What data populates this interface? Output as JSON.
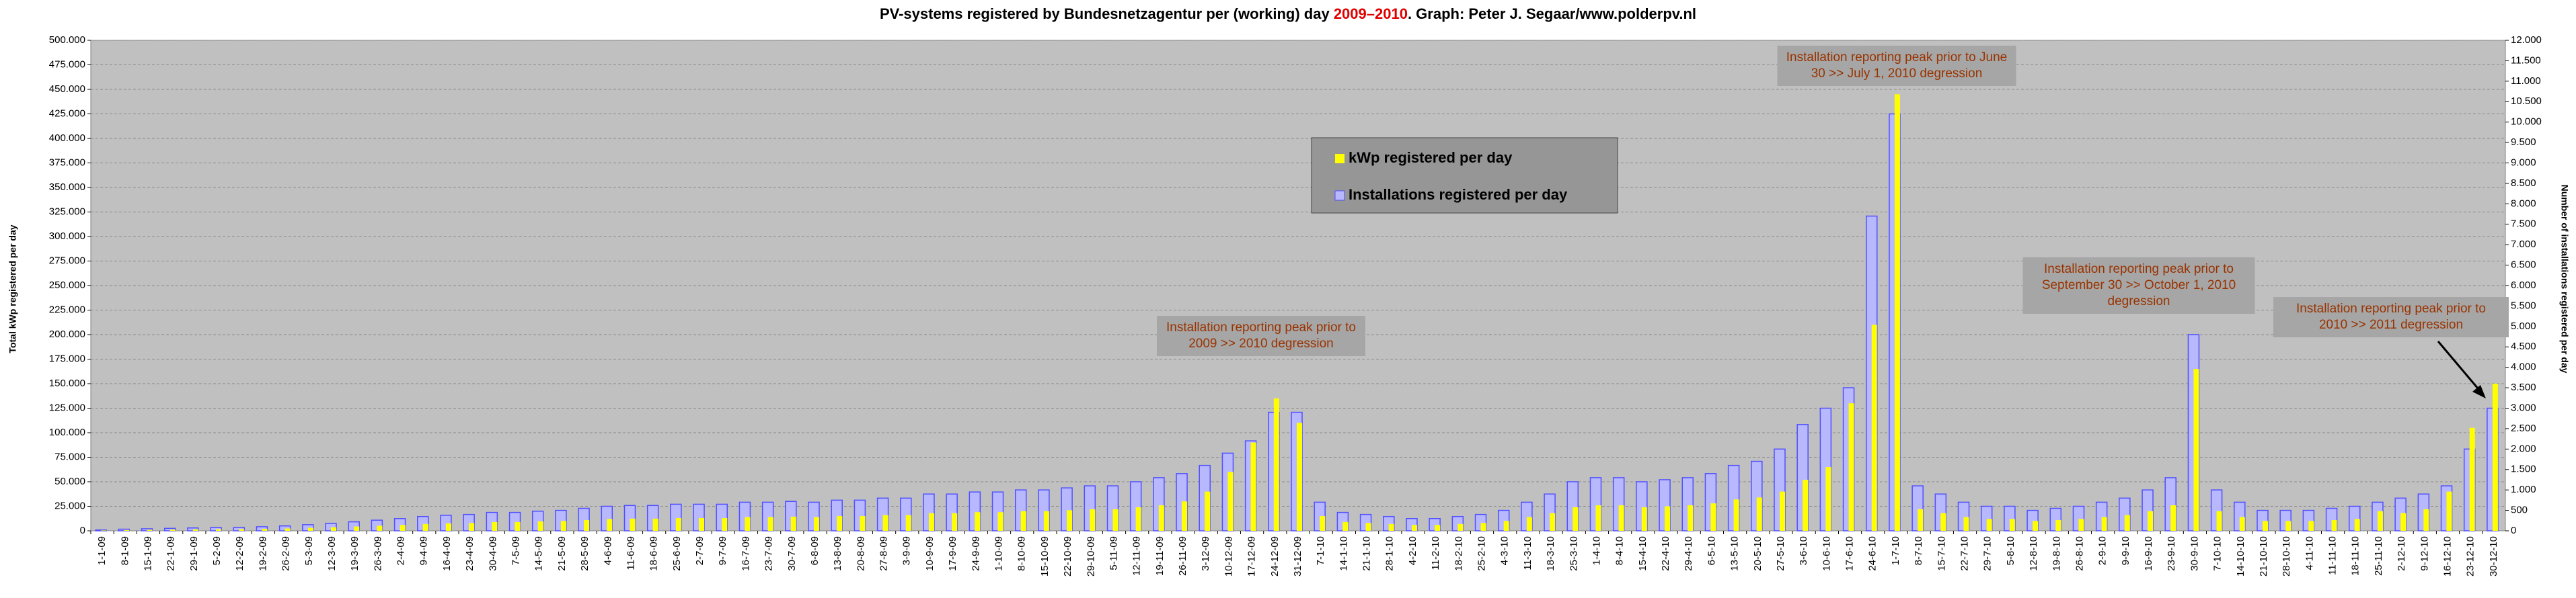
{
  "chart_data": {
    "type": "bar",
    "title_parts": [
      "PV-systems registered by Bundesnetzagentur per (working) day ",
      "2009–2010",
      ". Graph: Peter J. Segaar/www.polderpv.nl"
    ],
    "y_label": "Total kWp registered per day",
    "y2_label": "Number of installations registered per day",
    "categories": [
      "1-1-09",
      "8-1-09",
      "15-1-09",
      "22-1-09",
      "29-1-09",
      "5-2-09",
      "12-2-09",
      "19-2-09",
      "26-2-09",
      "5-3-09",
      "12-3-09",
      "19-3-09",
      "26-3-09",
      "2-4-09",
      "9-4-09",
      "16-4-09",
      "23-4-09",
      "30-4-09",
      "7-5-09",
      "14-5-09",
      "21-5-09",
      "28-5-09",
      "4-6-09",
      "11-6-09",
      "18-6-09",
      "25-6-09",
      "2-7-09",
      "9-7-09",
      "16-7-09",
      "23-7-09",
      "30-7-09",
      "6-8-09",
      "13-8-09",
      "20-8-09",
      "27-8-09",
      "3-9-09",
      "10-9-09",
      "17-9-09",
      "24-9-09",
      "1-10-09",
      "8-10-09",
      "15-10-09",
      "22-10-09",
      "29-10-09",
      "5-11-09",
      "12-11-09",
      "19-11-09",
      "26-11-09",
      "3-12-09",
      "10-12-09",
      "17-12-09",
      "24-12-09",
      "31-12-09",
      "7-1-10",
      "14-1-10",
      "21-1-10",
      "28-1-10",
      "4-2-10",
      "11-2-10",
      "18-2-10",
      "25-2-10",
      "4-3-10",
      "11-3-10",
      "18-3-10",
      "25-3-10",
      "1-4-10",
      "8-4-10",
      "15-4-10",
      "22-4-10",
      "29-4-10",
      "6-5-10",
      "13-5-10",
      "20-5-10",
      "27-5-10",
      "3-6-10",
      "10-6-10",
      "17-6-10",
      "24-6-10",
      "1-7-10",
      "8-7-10",
      "15-7-10",
      "22-7-10",
      "29-7-10",
      "5-8-10",
      "12-8-10",
      "19-8-10",
      "26-8-10",
      "2-9-10",
      "9-9-10",
      "16-9-10",
      "23-9-10",
      "30-9-10",
      "7-10-10",
      "14-10-10",
      "21-10-10",
      "28-10-10",
      "4-11-10",
      "11-11-10",
      "18-11-10",
      "25-11-10",
      "2-12-10",
      "9-12-10",
      "16-12-10",
      "23-12-10",
      "30-12-10"
    ],
    "series": [
      {
        "name": "kWp registered per day",
        "color": "#ffff00",
        "axis": "y",
        "values": [
          400,
          800,
          1000,
          1200,
          1400,
          1600,
          1600,
          2000,
          2400,
          3000,
          3600,
          4400,
          5200,
          6000,
          7000,
          7600,
          8000,
          9000,
          9000,
          9600,
          10000,
          11000,
          12000,
          12400,
          12400,
          13000,
          13000,
          13000,
          14000,
          14000,
          14400,
          14000,
          15000,
          15000,
          16000,
          16000,
          18000,
          18000,
          19000,
          19000,
          20000,
          20000,
          21000,
          22000,
          22000,
          24000,
          26000,
          30000,
          40000,
          60000,
          90000,
          135000,
          110000,
          15000,
          9000,
          8000,
          7000,
          6000,
          6000,
          7000,
          8000,
          10000,
          14000,
          18000,
          24000,
          26000,
          26000,
          24000,
          25000,
          26000,
          28000,
          32000,
          34000,
          40000,
          52000,
          65000,
          130000,
          210000,
          445000,
          22000,
          18000,
          14000,
          12000,
          12000,
          10000,
          11000,
          12000,
          14000,
          16000,
          20000,
          26000,
          165000,
          20000,
          14000,
          10000,
          10000,
          10000,
          11000,
          12000,
          20000,
          18000,
          22000,
          40000,
          105000,
          150000
        ]
      },
      {
        "name": "Installations registered per day",
        "color": "#5050ff",
        "axis": "y2",
        "values": [
          20,
          40,
          50,
          60,
          70,
          80,
          80,
          100,
          120,
          150,
          180,
          220,
          260,
          300,
          350,
          380,
          400,
          450,
          450,
          480,
          500,
          550,
          600,
          620,
          620,
          650,
          650,
          650,
          700,
          700,
          720,
          700,
          750,
          750,
          800,
          800,
          900,
          900,
          950,
          950,
          1000,
          1000,
          1050,
          1100,
          1100,
          1200,
          1300,
          1400,
          1600,
          1900,
          2200,
          2900,
          2900,
          700,
          450,
          400,
          350,
          300,
          300,
          350,
          400,
          500,
          700,
          900,
          1200,
          1300,
          1300,
          1200,
          1250,
          1300,
          1400,
          1600,
          1700,
          2000,
          2600,
          3000,
          3500,
          7700,
          10200,
          1100,
          900,
          700,
          600,
          600,
          500,
          550,
          600,
          700,
          800,
          1000,
          1300,
          4800,
          1000,
          700,
          500,
          500,
          500,
          550,
          600,
          700,
          800,
          900,
          1100,
          2000,
          3000
        ]
      }
    ],
    "ylim": [
      0,
      500000
    ],
    "yticks": [
      0,
      {
        "value": 25000,
        "label": "25.000"
      },
      {
        "value": 50000,
        "label": "50.000"
      },
      {
        "value": 75000,
        "label": "75.000"
      },
      {
        "value": 100000,
        "label": "100.000"
      },
      {
        "value": 125000,
        "label": "125.000"
      },
      {
        "value": 150000,
        "label": "150.000"
      },
      {
        "value": 175000,
        "label": "175.000"
      },
      {
        "value": 200000,
        "label": "200.000"
      },
      {
        "value": 225000,
        "label": "225.000"
      },
      {
        "value": 250000,
        "label": "250.000"
      },
      {
        "value": 275000,
        "label": "275.000"
      },
      {
        "value": 300000,
        "label": "300.000"
      },
      {
        "value": 325000,
        "label": "325.000"
      },
      {
        "value": 350000,
        "label": "350.000"
      },
      {
        "value": 375000,
        "label": "375.000"
      },
      {
        "value": 400000,
        "label": "400.000"
      },
      {
        "value": 425000,
        "label": "425.000"
      },
      {
        "value": 450000,
        "label": "450.000"
      },
      {
        "value": 475000,
        "label": "475.000"
      },
      {
        "value": 500000,
        "label": "500.000"
      }
    ],
    "y2lim": [
      0,
      12000
    ],
    "y2ticks": [
      0,
      500,
      {
        "value": 1000,
        "label": "1.000"
      },
      {
        "value": 1500,
        "label": "1.500"
      },
      {
        "value": 2000,
        "label": "2.000"
      },
      {
        "value": 2500,
        "label": "2.500"
      },
      {
        "value": 3000,
        "label": "3.000"
      },
      {
        "value": 3500,
        "label": "3.500"
      },
      {
        "value": 4000,
        "label": "4.000"
      },
      {
        "value": 4500,
        "label": "4.500"
      },
      {
        "value": 5000,
        "label": "5.000"
      },
      {
        "value": 5500,
        "label": "5.500"
      },
      {
        "value": 6000,
        "label": "6.000"
      },
      {
        "value": 6500,
        "label": "6.500"
      },
      {
        "value": 7000,
        "label": "7.000"
      },
      {
        "value": 7500,
        "label": "7.500"
      },
      {
        "value": 8000,
        "label": "8.000"
      },
      {
        "value": 8500,
        "label": "8.500"
      },
      {
        "value": 9000,
        "label": "9.000"
      },
      {
        "value": 9500,
        "label": "9.500"
      },
      {
        "value": 10000,
        "label": "10.000"
      },
      {
        "value": 10500,
        "label": "10.500"
      },
      {
        "value": 11000,
        "label": "11.000"
      },
      {
        "value": 11500,
        "label": "11.500"
      },
      {
        "value": 12000,
        "label": "12.000"
      }
    ],
    "grid": true,
    "annotations": [
      {
        "lines": [
          "Installation reporting peak prior to",
          "2009 >> 2010 degression"
        ]
      },
      {
        "lines": [
          "Installation reporting peak prior to June",
          "30 >> July 1, 2010 degression"
        ]
      },
      {
        "lines": [
          "Installation reporting peak prior to",
          "September 30 >> October 1, 2010",
          "degression"
        ]
      },
      {
        "lines": [
          "Installation reporting peak prior to",
          "2010 >> 2011 degression"
        ]
      }
    ]
  }
}
